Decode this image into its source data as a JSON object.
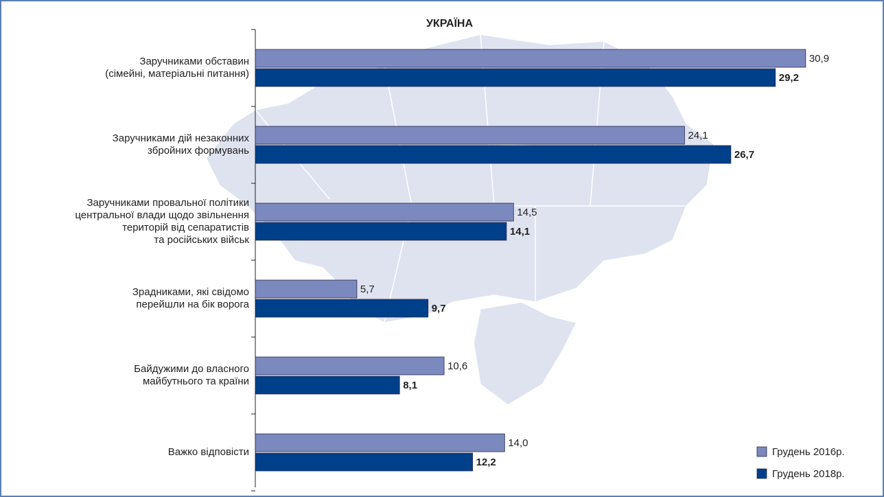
{
  "chart_data": {
    "type": "bar",
    "orientation": "horizontal",
    "title": "УКРАЇНА",
    "categories": [
      "Заручниками обставин\n(сімейні, матеріальні питання)",
      "Заручниками дій незаконних\nзбройних формувань",
      "Заручниками провальної політики\nцентральної влади щодо звільнення\nтериторій від сепаратистів\nта російських військ",
      "Зрадниками, які свідомо\nперейшли на бік ворога",
      "Байдужими до власного\nмайбутнього та країни",
      "Важко відповісти"
    ],
    "series": [
      {
        "name": "Грудень 2016р.",
        "color": "#7b89be",
        "values": [
          30.9,
          24.1,
          14.5,
          5.7,
          10.6,
          14.0
        ],
        "value_labels": [
          "30,9",
          "24,1",
          "14,5",
          "5,7",
          "10,6",
          "14,0"
        ]
      },
      {
        "name": "Грудень 2018р.",
        "color": "#003f8a",
        "values": [
          29.2,
          26.7,
          14.1,
          9.7,
          8.1,
          12.2
        ],
        "value_labels": [
          "29,2",
          "26,7",
          "14,1",
          "9,7",
          "8,1",
          "12,2"
        ]
      }
    ],
    "legend": "bottom-right"
  }
}
